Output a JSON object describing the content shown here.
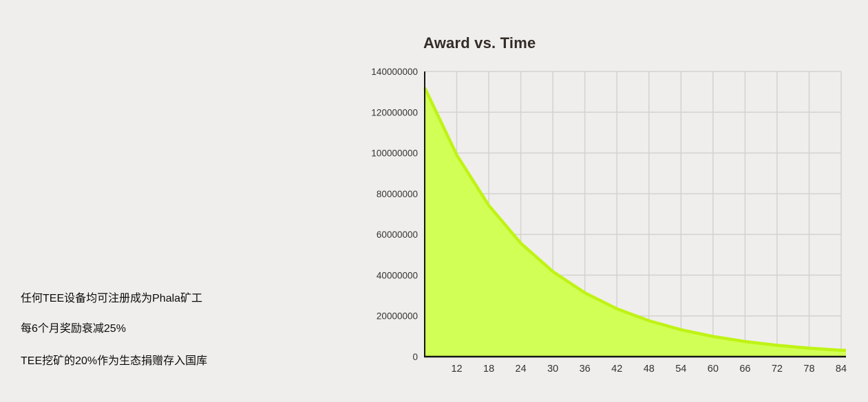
{
  "notes": [
    "任何TEE设备均可注册成为Phala矿工",
    "每6个月奖励衰减25%",
    "TEE挖矿的20%作为生态捐赠存入国库"
  ],
  "chart_data": {
    "type": "area",
    "title": "Award vs. Time",
    "xlabel": "",
    "ylabel": "",
    "x": [
      6,
      12,
      18,
      24,
      30,
      36,
      42,
      48,
      54,
      60,
      66,
      72,
      78,
      84
    ],
    "values": [
      132000000,
      99000000,
      74250000,
      55687500,
      41765625,
      31324219,
      23493164,
      17619873,
      13214905,
      9911179,
      7433384,
      5575038,
      4181279,
      3135959
    ],
    "series_note": "reward decays 25% every 6 months",
    "x_ticks": [
      12,
      18,
      24,
      30,
      36,
      42,
      48,
      54,
      60,
      66,
      72,
      78,
      84
    ],
    "y_ticks": [
      0,
      20000000,
      40000000,
      60000000,
      80000000,
      100000000,
      120000000,
      140000000
    ],
    "xlim": [
      6,
      85
    ],
    "ylim": [
      0,
      140000000
    ],
    "grid": true,
    "legend": "none",
    "colors": {
      "fill": "#d2ff55",
      "line": "#bff315",
      "grid": "#d3d2cf",
      "axis": "#141414",
      "tick_text": "#333333",
      "title_text": "#332b27",
      "background": "#efeeec"
    }
  }
}
